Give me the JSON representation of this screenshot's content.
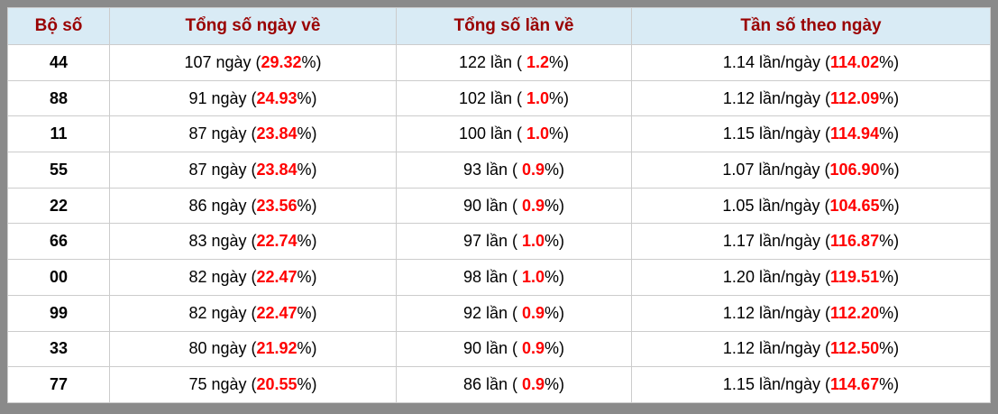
{
  "colors": {
    "frame": "#8a8a8a",
    "header_bg": "#d9ebf5",
    "header_text": "#990000",
    "highlight_red": "#ff0000",
    "grid_line": "#cccccc",
    "cell_bg": "#ffffff"
  },
  "table": {
    "headers": [
      {
        "label": "Bộ số"
      },
      {
        "label": "Tổng số ngày về"
      },
      {
        "label": "Tổng số lần về"
      },
      {
        "label": "Tần số theo ngày"
      }
    ],
    "rows": [
      {
        "pair": "44",
        "days_pre": "107 ngày (",
        "days_red": "29.32",
        "days_post": "%)",
        "times_pre": "122 lần ( ",
        "times_red": "1.2",
        "times_post": "%)",
        "freq_pre": "1.14 lần/ngày (",
        "freq_red": "114.02",
        "freq_post": "%)"
      },
      {
        "pair": "88",
        "days_pre": "91 ngày (",
        "days_red": "24.93",
        "days_post": "%)",
        "times_pre": "102 lần ( ",
        "times_red": "1.0",
        "times_post": "%)",
        "freq_pre": "1.12 lần/ngày (",
        "freq_red": "112.09",
        "freq_post": "%)"
      },
      {
        "pair": "11",
        "days_pre": "87 ngày (",
        "days_red": "23.84",
        "days_post": "%)",
        "times_pre": "100 lần ( ",
        "times_red": "1.0",
        "times_post": "%)",
        "freq_pre": "1.15 lần/ngày (",
        "freq_red": "114.94",
        "freq_post": "%)"
      },
      {
        "pair": "55",
        "days_pre": "87 ngày (",
        "days_red": "23.84",
        "days_post": "%)",
        "times_pre": "93 lần ( ",
        "times_red": "0.9",
        "times_post": "%)",
        "freq_pre": "1.07 lần/ngày (",
        "freq_red": "106.90",
        "freq_post": "%)"
      },
      {
        "pair": "22",
        "days_pre": "86 ngày (",
        "days_red": "23.56",
        "days_post": "%)",
        "times_pre": "90 lần ( ",
        "times_red": "0.9",
        "times_post": "%)",
        "freq_pre": "1.05 lần/ngày (",
        "freq_red": "104.65",
        "freq_post": "%)"
      },
      {
        "pair": "66",
        "days_pre": "83 ngày (",
        "days_red": "22.74",
        "days_post": "%)",
        "times_pre": "97 lần ( ",
        "times_red": "1.0",
        "times_post": "%)",
        "freq_pre": "1.17 lần/ngày (",
        "freq_red": "116.87",
        "freq_post": "%)"
      },
      {
        "pair": "00",
        "days_pre": "82 ngày (",
        "days_red": "22.47",
        "days_post": "%)",
        "times_pre": "98 lần ( ",
        "times_red": "1.0",
        "times_post": "%)",
        "freq_pre": "1.20 lần/ngày (",
        "freq_red": "119.51",
        "freq_post": "%)"
      },
      {
        "pair": "99",
        "days_pre": "82 ngày (",
        "days_red": "22.47",
        "days_post": "%)",
        "times_pre": "92 lần ( ",
        "times_red": "0.9",
        "times_post": "%)",
        "freq_pre": "1.12 lần/ngày (",
        "freq_red": "112.20",
        "freq_post": "%)"
      },
      {
        "pair": "33",
        "days_pre": "80 ngày (",
        "days_red": "21.92",
        "days_post": "%)",
        "times_pre": "90 lần ( ",
        "times_red": "0.9",
        "times_post": "%)",
        "freq_pre": "1.12 lần/ngày (",
        "freq_red": "112.50",
        "freq_post": "%)"
      },
      {
        "pair": "77",
        "days_pre": "75 ngày (",
        "days_red": "20.55",
        "days_post": "%)",
        "times_pre": "86 lần ( ",
        "times_red": "0.9",
        "times_post": "%)",
        "freq_pre": "1.15 lần/ngày (",
        "freq_red": "114.67",
        "freq_post": "%)"
      }
    ]
  },
  "chart_data": {
    "type": "table",
    "title": "",
    "columns": [
      "Bộ số",
      "Tổng số ngày về",
      "Tổng số lần về",
      "Tần số theo ngày"
    ],
    "rows": [
      {
        "pair": "44",
        "days": 107,
        "days_pct": 29.32,
        "times": 122,
        "times_pct": 1.2,
        "freq_per_day": 1.14,
        "freq_pct": 114.02
      },
      {
        "pair": "88",
        "days": 91,
        "days_pct": 24.93,
        "times": 102,
        "times_pct": 1.0,
        "freq_per_day": 1.12,
        "freq_pct": 112.09
      },
      {
        "pair": "11",
        "days": 87,
        "days_pct": 23.84,
        "times": 100,
        "times_pct": 1.0,
        "freq_per_day": 1.15,
        "freq_pct": 114.94
      },
      {
        "pair": "55",
        "days": 87,
        "days_pct": 23.84,
        "times": 93,
        "times_pct": 0.9,
        "freq_per_day": 1.07,
        "freq_pct": 106.9
      },
      {
        "pair": "22",
        "days": 86,
        "days_pct": 23.56,
        "times": 90,
        "times_pct": 0.9,
        "freq_per_day": 1.05,
        "freq_pct": 104.65
      },
      {
        "pair": "66",
        "days": 83,
        "days_pct": 22.74,
        "times": 97,
        "times_pct": 1.0,
        "freq_per_day": 1.17,
        "freq_pct": 116.87
      },
      {
        "pair": "00",
        "days": 82,
        "days_pct": 22.47,
        "times": 98,
        "times_pct": 1.0,
        "freq_per_day": 1.2,
        "freq_pct": 119.51
      },
      {
        "pair": "99",
        "days": 82,
        "days_pct": 22.47,
        "times": 92,
        "times_pct": 0.9,
        "freq_per_day": 1.12,
        "freq_pct": 112.2
      },
      {
        "pair": "33",
        "days": 80,
        "days_pct": 21.92,
        "times": 90,
        "times_pct": 0.9,
        "freq_per_day": 1.12,
        "freq_pct": 112.5
      },
      {
        "pair": "77",
        "days": 75,
        "days_pct": 20.55,
        "times": 86,
        "times_pct": 0.9,
        "freq_per_day": 1.15,
        "freq_pct": 114.67
      }
    ]
  }
}
